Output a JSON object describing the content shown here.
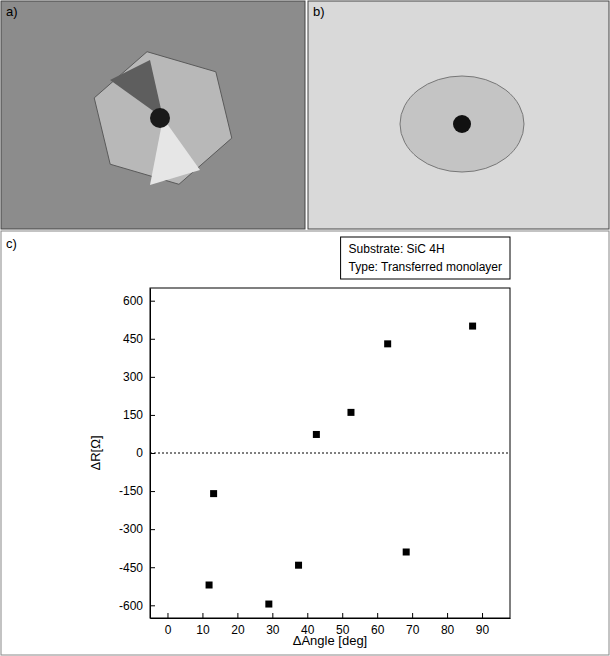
{
  "panel_labels": [
    "a)",
    "b)"
  ],
  "chart_data": {
    "type": "scatter",
    "panel_label": "c)",
    "annotations": [
      "Substrate: SiC 4H",
      "Type: Transferred monolayer"
    ],
    "x_label": "ΔAngle [deg]",
    "y_label": "ΔR[Ω]",
    "x": [
      11.9,
      13.2,
      29,
      37.5,
      42.6,
      52.5,
      63,
      68.3,
      87.3
    ],
    "values": [
      -520,
      -160,
      -595,
      -442,
      73,
      160,
      430,
      -390,
      500
    ],
    "color": "#000000",
    "marker": "square",
    "xlim": [
      -5,
      98
    ],
    "xticks": [
      0,
      10,
      20,
      30,
      40,
      50,
      60,
      70,
      80,
      90
    ],
    "ylim": [
      -650,
      650
    ],
    "yticks": [
      -600,
      -450,
      -300,
      -150,
      0,
      150,
      300,
      450,
      600
    ],
    "hlines": [
      0
    ],
    "grid": false
  }
}
